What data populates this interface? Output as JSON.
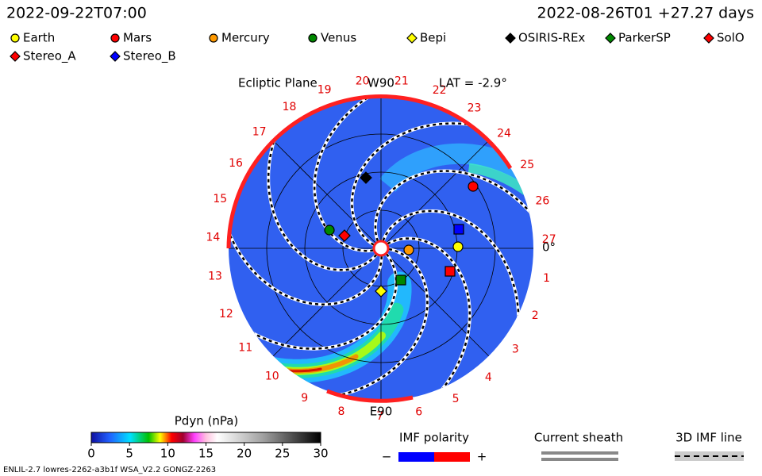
{
  "header": {
    "time": "2022-09-22T07:00",
    "reference": "2022-08-26T01 +27.27 days"
  },
  "legend": [
    {
      "name": "Earth",
      "color": "#ffff00",
      "shape": "circle"
    },
    {
      "name": "Mars",
      "color": "#ff0000",
      "shape": "circle"
    },
    {
      "name": "Mercury",
      "color": "#ff9900",
      "shape": "circle"
    },
    {
      "name": "Venus",
      "color": "#008800",
      "shape": "circle"
    },
    {
      "name": "Bepi",
      "color": "#ffff00",
      "shape": "diamond"
    },
    {
      "name": "OSIRIS-REx",
      "color": "#000000",
      "shape": "diamond"
    },
    {
      "name": "ParkerSP",
      "color": "#008800",
      "shape": "diamond"
    },
    {
      "name": "SolO",
      "color": "#ff0000",
      "shape": "diamond"
    },
    {
      "name": "Stereo_A",
      "color": "#ff0000",
      "shape": "diamond"
    },
    {
      "name": "Stereo_B",
      "color": "#0000ff",
      "shape": "diamond"
    }
  ],
  "plot": {
    "plane": "Ecliptic Plane",
    "top": "W90",
    "bottom": "E90",
    "latitude": "LAT = -2.9°",
    "zero_label": "0°",
    "longitudes": [
      1,
      2,
      3,
      4,
      5,
      6,
      7,
      8,
      9,
      10,
      11,
      12,
      13,
      14,
      15,
      16,
      17,
      18,
      19,
      20,
      21,
      22,
      23,
      24,
      25,
      26,
      27
    ]
  },
  "colorbar": {
    "title": "Pdyn (nPa)",
    "range": [
      0,
      30
    ],
    "ticks": [
      0,
      5,
      10,
      15,
      20,
      25,
      30
    ]
  },
  "polarity": {
    "title": "IMF polarity",
    "minus": "−",
    "plus": "+"
  },
  "sheath": "Current sheath",
  "imf_line": "3D IMF line",
  "footer": "ENLIL-2.7 lowres-2262-a3b1f WSA_V2.2 GONGZ-2263"
}
